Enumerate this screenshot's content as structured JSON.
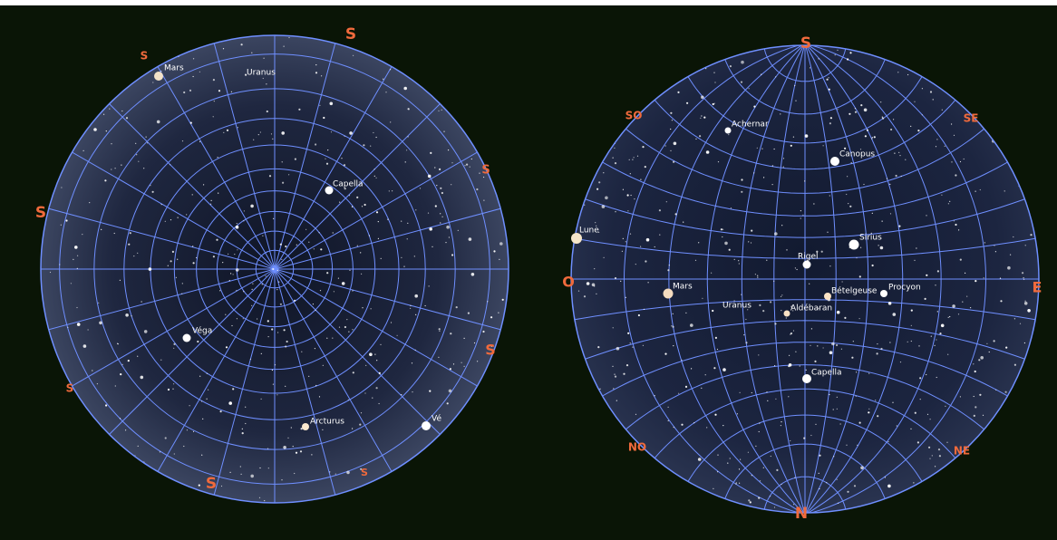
{
  "left_view": {
    "cardinal_labels": [
      "S",
      "S",
      "S",
      "S",
      "S",
      "S",
      "S",
      "S",
      "S"
    ],
    "object_labels": [
      "Mars",
      "Uranus",
      "Capella",
      "Véga",
      "Arcturus",
      "Vé"
    ]
  },
  "right_view": {
    "cardinal_labels": [
      "S",
      "SO",
      "SE",
      "O",
      "E",
      "NO",
      "NE",
      "N"
    ],
    "object_labels": [
      "Achernar",
      "Canopus",
      "Lune",
      "Sirius",
      "Rigel",
      "Mars",
      "Bételgeuse",
      "Procyon",
      "Uranus",
      "Aldébaran",
      "Capella"
    ]
  }
}
